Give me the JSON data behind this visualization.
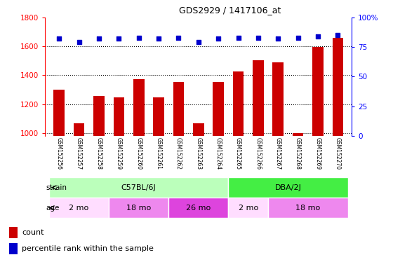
{
  "title": "GDS2929 / 1417106_at",
  "samples": [
    "GSM152256",
    "GSM152257",
    "GSM152258",
    "GSM152259",
    "GSM152260",
    "GSM152261",
    "GSM152262",
    "GSM152263",
    "GSM152264",
    "GSM152265",
    "GSM152266",
    "GSM152267",
    "GSM152268",
    "GSM152269",
    "GSM152270"
  ],
  "counts": [
    1300,
    1065,
    1255,
    1245,
    1375,
    1245,
    1355,
    1065,
    1355,
    1425,
    1505,
    1490,
    1000,
    1595,
    1660
  ],
  "percentiles": [
    82,
    79,
    82,
    82,
    83,
    82,
    83,
    79,
    82,
    83,
    83,
    82,
    83,
    84,
    85
  ],
  "ylim_left": [
    980,
    1800
  ],
  "ylim_right": [
    0,
    100
  ],
  "yticks_left": [
    1000,
    1200,
    1400,
    1600,
    1800
  ],
  "yticks_right": [
    0,
    25,
    50,
    75,
    100
  ],
  "bar_color": "#cc0000",
  "dot_color": "#0000cc",
  "strain_groups": [
    {
      "label": "C57BL/6J",
      "start": 0,
      "end": 9,
      "color": "#bbffbb"
    },
    {
      "label": "DBA/2J",
      "start": 9,
      "end": 15,
      "color": "#44ee44"
    }
  ],
  "age_groups": [
    {
      "label": "2 mo",
      "start": 0,
      "end": 3,
      "color": "#ffddff"
    },
    {
      "label": "18 mo",
      "start": 3,
      "end": 6,
      "color": "#ee88ee"
    },
    {
      "label": "26 mo",
      "start": 6,
      "end": 9,
      "color": "#dd44dd"
    },
    {
      "label": "2 mo",
      "start": 9,
      "end": 11,
      "color": "#ffddff"
    },
    {
      "label": "18 mo",
      "start": 11,
      "end": 15,
      "color": "#ee88ee"
    }
  ],
  "background_color": "#ffffff",
  "tick_area_bg": "#c8c8c8",
  "bar_bottom": 980
}
